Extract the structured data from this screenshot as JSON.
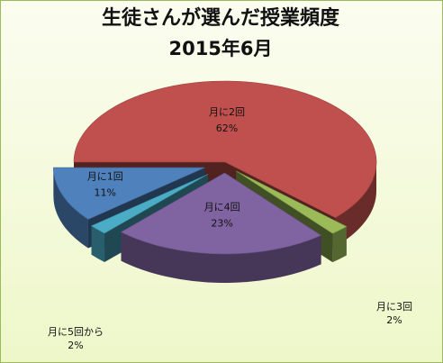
{
  "chart_data": {
    "type": "pie",
    "title": "生徒さんが選んだ授業頻度",
    "subtitle": "2015年6月",
    "slices": [
      {
        "label": "月に2回",
        "value": 62,
        "value_label": "62%",
        "color": "#c0504d"
      },
      {
        "label": "月に3回",
        "value": 2,
        "value_label": "2%",
        "color": "#9bbb59"
      },
      {
        "label": "月に4回",
        "value": 23,
        "value_label": "23%",
        "color": "#8064a2"
      },
      {
        "label": "月に5回から",
        "value": 2,
        "value_label": "2%",
        "color": "#4bacc6"
      },
      {
        "label": "月に1回",
        "value": 11,
        "value_label": "11%",
        "color": "#4f81bd"
      }
    ],
    "legend": "none"
  }
}
